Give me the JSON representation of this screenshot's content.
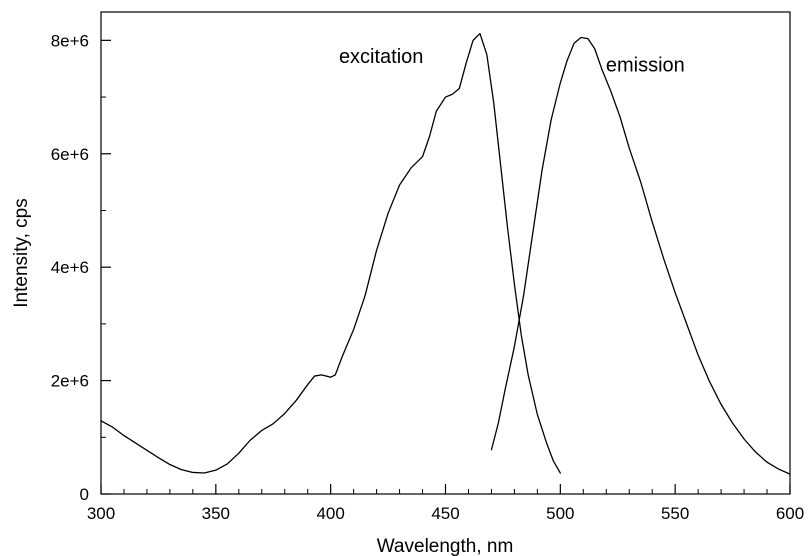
{
  "chart_data": {
    "type": "line",
    "xlabel": "Wavelength, nm",
    "ylabel": "Intensity, cps",
    "xlim": [
      300,
      600
    ],
    "ylim": [
      0,
      8500000
    ],
    "x_ticks": [
      300,
      350,
      400,
      450,
      500,
      550,
      600
    ],
    "x_tick_labels": [
      "300",
      "350",
      "400",
      "450",
      "500",
      "550",
      "600"
    ],
    "x_minor_step": 10,
    "y_ticks": [
      0,
      2000000,
      4000000,
      6000000,
      8000000
    ],
    "y_tick_labels": [
      "0",
      "2e+6",
      "4e+6",
      "6e+6",
      "8e+6"
    ],
    "y_minor_step": 1000000,
    "grid": false,
    "series": [
      {
        "name": "excitation",
        "color": "#000000",
        "points": [
          [
            300,
            1290000
          ],
          [
            305,
            1180000
          ],
          [
            310,
            1030000
          ],
          [
            315,
            900000
          ],
          [
            320,
            770000
          ],
          [
            325,
            640000
          ],
          [
            330,
            520000
          ],
          [
            335,
            430000
          ],
          [
            340,
            380000
          ],
          [
            345,
            370000
          ],
          [
            350,
            420000
          ],
          [
            355,
            530000
          ],
          [
            360,
            720000
          ],
          [
            365,
            950000
          ],
          [
            370,
            1120000
          ],
          [
            375,
            1240000
          ],
          [
            380,
            1420000
          ],
          [
            385,
            1650000
          ],
          [
            390,
            1930000
          ],
          [
            393,
            2080000
          ],
          [
            396,
            2100000
          ],
          [
            400,
            2060000
          ],
          [
            402,
            2100000
          ],
          [
            405,
            2420000
          ],
          [
            410,
            2900000
          ],
          [
            415,
            3500000
          ],
          [
            420,
            4300000
          ],
          [
            425,
            4950000
          ],
          [
            430,
            5450000
          ],
          [
            435,
            5750000
          ],
          [
            440,
            5950000
          ],
          [
            443,
            6300000
          ],
          [
            446,
            6750000
          ],
          [
            450,
            7000000
          ],
          [
            453,
            7050000
          ],
          [
            456,
            7150000
          ],
          [
            459,
            7600000
          ],
          [
            462,
            8000000
          ],
          [
            465,
            8120000
          ],
          [
            468,
            7750000
          ],
          [
            471,
            6900000
          ],
          [
            474,
            5800000
          ],
          [
            477,
            4700000
          ],
          [
            480,
            3700000
          ],
          [
            483,
            2800000
          ],
          [
            486,
            2100000
          ],
          [
            490,
            1400000
          ],
          [
            494,
            900000
          ],
          [
            497,
            580000
          ],
          [
            500,
            370000
          ]
        ]
      },
      {
        "name": "emission",
        "color": "#000000",
        "points": [
          [
            470,
            780000
          ],
          [
            473,
            1250000
          ],
          [
            476,
            1850000
          ],
          [
            480,
            2600000
          ],
          [
            484,
            3500000
          ],
          [
            488,
            4600000
          ],
          [
            492,
            5700000
          ],
          [
            496,
            6600000
          ],
          [
            500,
            7250000
          ],
          [
            503,
            7650000
          ],
          [
            506,
            7950000
          ],
          [
            509,
            8050000
          ],
          [
            512,
            8030000
          ],
          [
            515,
            7850000
          ],
          [
            518,
            7500000
          ],
          [
            522,
            7100000
          ],
          [
            526,
            6650000
          ],
          [
            530,
            6100000
          ],
          [
            535,
            5500000
          ],
          [
            540,
            4800000
          ],
          [
            545,
            4150000
          ],
          [
            550,
            3550000
          ],
          [
            555,
            3000000
          ],
          [
            560,
            2450000
          ],
          [
            565,
            1980000
          ],
          [
            570,
            1580000
          ],
          [
            575,
            1250000
          ],
          [
            580,
            970000
          ],
          [
            585,
            740000
          ],
          [
            590,
            560000
          ],
          [
            595,
            440000
          ],
          [
            600,
            350000
          ]
        ]
      }
    ],
    "annotations": [
      {
        "text": "excitation",
        "x": 422,
        "y": 7600000,
        "anchor": "middle"
      },
      {
        "text": "emission",
        "x": 537,
        "y": 7450000,
        "anchor": "middle"
      }
    ]
  }
}
